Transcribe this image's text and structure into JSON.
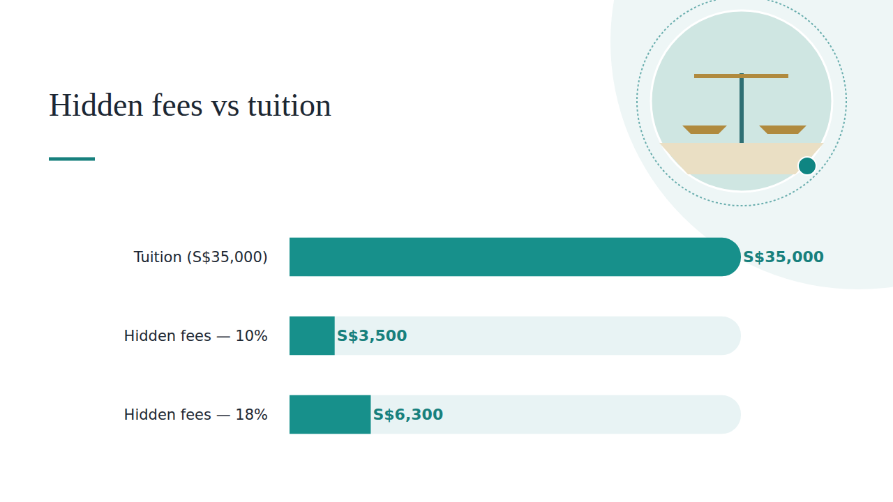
{
  "chart_data": {
    "type": "bar",
    "title": "Hidden fees vs tuition",
    "orientation": "horizontal",
    "categories": [
      "Tuition (S$35,000)",
      "Hidden fees — 10%",
      "Hidden fees — 18%"
    ],
    "values": [
      35000,
      3500,
      6300
    ],
    "value_labels": [
      "S$35,000",
      "S$3,500",
      "S$6,300"
    ],
    "color": "#17908b",
    "xlim": [
      0,
      35000
    ],
    "grid": false,
    "data_labels": true,
    "tick_labels": "y"
  }
}
